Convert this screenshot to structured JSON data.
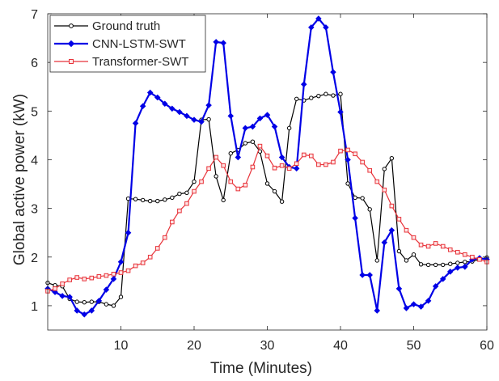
{
  "chart_data": {
    "type": "line",
    "xlabel": "Time (Minutes)",
    "ylabel": "Global active power (kW)",
    "xlim": [
      0,
      60
    ],
    "ylim": [
      0.5,
      7
    ],
    "xticks": [
      10,
      20,
      30,
      40,
      50,
      60
    ],
    "yticks": [
      1,
      2,
      3,
      4,
      5,
      6,
      7
    ],
    "grid": false,
    "legend_position": "top-left",
    "series": [
      {
        "name": "Ground truth",
        "color": "#000000",
        "marker": "circle",
        "x": [
          0,
          1,
          2,
          3,
          4,
          5,
          6,
          7,
          8,
          9,
          10,
          11,
          12,
          13,
          14,
          15,
          16,
          17,
          18,
          19,
          20,
          21,
          22,
          23,
          24,
          25,
          26,
          27,
          28,
          29,
          30,
          31,
          32,
          33,
          34,
          35,
          36,
          37,
          38,
          39,
          40,
          41,
          42,
          43,
          44,
          45,
          46,
          47,
          48,
          49,
          50,
          51,
          52,
          53,
          54,
          55,
          56,
          57,
          58,
          59,
          60
        ],
        "y": [
          1.47,
          1.42,
          1.4,
          1.14,
          1.08,
          1.07,
          1.08,
          1.08,
          1.03,
          1.0,
          1.18,
          3.2,
          3.19,
          3.17,
          3.15,
          3.15,
          3.18,
          3.22,
          3.3,
          3.32,
          3.55,
          4.82,
          4.83,
          3.66,
          3.17,
          4.13,
          4.2,
          4.34,
          4.37,
          4.17,
          3.51,
          3.35,
          3.14,
          4.65,
          5.25,
          5.22,
          5.27,
          5.31,
          5.35,
          5.32,
          5.35,
          3.51,
          3.22,
          3.21,
          2.98,
          1.93,
          3.81,
          4.03,
          2.12,
          1.93,
          2.05,
          1.85,
          1.84,
          1.84,
          1.84,
          1.86,
          1.88,
          1.9,
          1.91,
          1.95,
          1.99
        ]
      },
      {
        "name": "CNN-LSTM-SWT",
        "color": "#0000e6",
        "marker": "diamond",
        "x": [
          0,
          1,
          2,
          3,
          4,
          5,
          6,
          7,
          8,
          9,
          10,
          11,
          12,
          13,
          14,
          15,
          16,
          17,
          18,
          19,
          20,
          21,
          22,
          23,
          24,
          25,
          26,
          27,
          28,
          29,
          30,
          31,
          32,
          33,
          34,
          35,
          36,
          37,
          38,
          39,
          40,
          41,
          42,
          43,
          44,
          45,
          46,
          47,
          48,
          49,
          50,
          51,
          52,
          53,
          54,
          55,
          56,
          57,
          58,
          59,
          60
        ],
        "y": [
          1.35,
          1.28,
          1.2,
          1.18,
          0.9,
          0.82,
          0.9,
          1.1,
          1.33,
          1.55,
          1.9,
          2.5,
          4.75,
          5.1,
          5.38,
          5.28,
          5.15,
          5.05,
          4.98,
          4.9,
          4.82,
          4.78,
          5.12,
          6.42,
          6.4,
          4.9,
          4.05,
          4.65,
          4.68,
          4.85,
          4.92,
          4.68,
          4.05,
          3.85,
          3.82,
          5.55,
          6.72,
          6.9,
          6.72,
          5.8,
          4.98,
          4.0,
          2.8,
          1.63,
          1.63,
          0.9,
          2.3,
          2.55,
          1.35,
          0.95,
          1.03,
          0.98,
          1.1,
          1.4,
          1.55,
          1.7,
          1.78,
          1.8,
          1.95,
          1.98,
          1.95
        ]
      },
      {
        "name": "Transformer-SWT",
        "color": "#e8333a",
        "marker": "square",
        "x": [
          0,
          1,
          2,
          3,
          4,
          5,
          6,
          7,
          8,
          9,
          10,
          11,
          12,
          13,
          14,
          15,
          16,
          17,
          18,
          19,
          20,
          21,
          22,
          23,
          24,
          25,
          26,
          27,
          28,
          29,
          30,
          31,
          32,
          33,
          34,
          35,
          36,
          37,
          38,
          39,
          40,
          41,
          42,
          43,
          44,
          45,
          46,
          47,
          48,
          49,
          50,
          51,
          52,
          53,
          54,
          55,
          56,
          57,
          58,
          59,
          60
        ],
        "y": [
          1.3,
          1.35,
          1.45,
          1.53,
          1.58,
          1.55,
          1.57,
          1.6,
          1.62,
          1.65,
          1.68,
          1.72,
          1.82,
          1.88,
          2.0,
          2.18,
          2.4,
          2.72,
          2.95,
          3.1,
          3.35,
          3.55,
          3.82,
          4.05,
          3.88,
          3.55,
          3.4,
          3.48,
          3.85,
          4.28,
          4.08,
          3.83,
          3.88,
          3.82,
          3.92,
          4.1,
          4.08,
          3.9,
          3.9,
          3.95,
          4.18,
          4.2,
          4.12,
          3.95,
          3.78,
          3.55,
          3.38,
          3.05,
          2.78,
          2.55,
          2.4,
          2.25,
          2.22,
          2.28,
          2.22,
          2.15,
          2.1,
          2.05,
          2.0,
          1.95,
          1.9
        ]
      }
    ]
  }
}
